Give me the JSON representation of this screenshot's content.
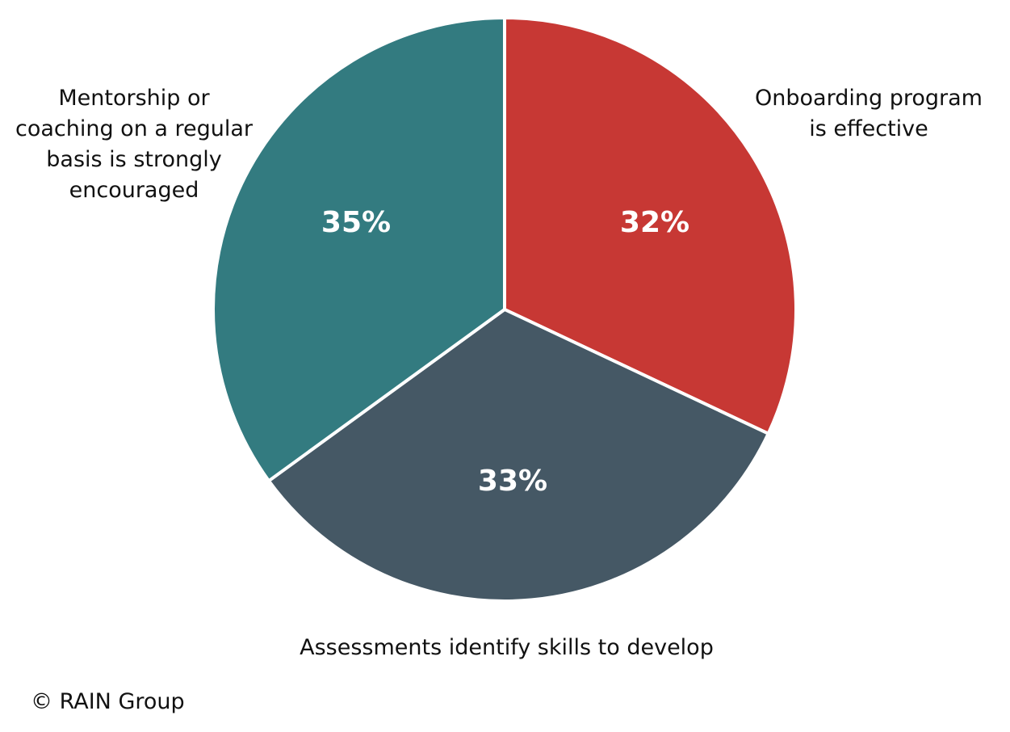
{
  "chart_data": {
    "type": "pie",
    "title": "",
    "categories": [
      "Onboarding program is effective",
      "Assessments identify skills to develop",
      "Mentorship or coaching on a regular basis is strongly encouraged"
    ],
    "values": [
      32,
      33,
      35
    ],
    "unit": "%",
    "colors": [
      "#C73834",
      "#455865",
      "#337B80"
    ],
    "start_angle": "12 o'clock, clockwise",
    "legend": "none (direct labels)"
  },
  "slices": [
    {
      "label_lines": [
        "Onboarding program",
        "is effective"
      ],
      "percent": "32%",
      "color": "#C73834"
    },
    {
      "label_lines": [
        "Assessments identify skills to develop"
      ],
      "percent": "33%",
      "color": "#455865"
    },
    {
      "label_lines": [
        "Mentorship or",
        "coaching on a regular",
        "basis is strongly",
        "encouraged"
      ],
      "percent": "35%",
      "color": "#337B80"
    }
  ],
  "credit": "© RAIN Group"
}
